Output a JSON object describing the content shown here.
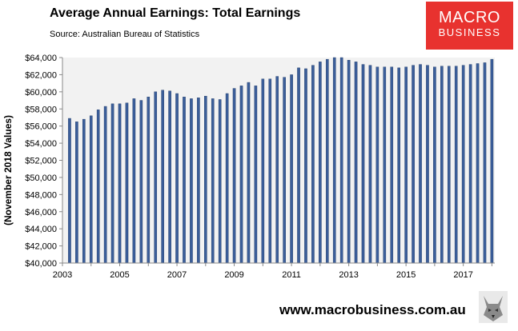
{
  "header": {
    "title": "Average Annual Earnings: Total Earnings",
    "subtitle": "Source: Australian Bureau of Statistics"
  },
  "logo": {
    "line1": "MACRO",
    "line2": "BUSINESS"
  },
  "footer": {
    "url": "www.macrobusiness.com.au"
  },
  "colors": {
    "bar": "#3b5e9a",
    "bar_edge": "#1f3a66",
    "plot_bg": "#f2f2f2",
    "logo_bg": "#e8322f"
  },
  "chart_data": {
    "type": "bar",
    "title": "Average Annual Earnings: Total Earnings",
    "ylabel": "(November 2018 Values)",
    "xlabel": "",
    "ylim": [
      40000,
      64000
    ],
    "y_ticks": [
      40000,
      42000,
      44000,
      46000,
      48000,
      50000,
      52000,
      54000,
      56000,
      58000,
      60000,
      62000,
      64000
    ],
    "y_tick_labels": [
      "$40,000",
      "$42,000",
      "$44,000",
      "$46,000",
      "$48,000",
      "$50,000",
      "$52,000",
      "$54,000",
      "$56,000",
      "$58,000",
      "$60,000",
      "$62,000",
      "$64,000"
    ],
    "x_tick_labels": [
      {
        "label": "2003",
        "x": 2003
      },
      {
        "label": "2005",
        "x": 2005
      },
      {
        "label": "2007",
        "x": 2007
      },
      {
        "label": "2009",
        "x": 2009
      },
      {
        "label": "2011",
        "x": 2011
      },
      {
        "label": "2013",
        "x": 2013
      },
      {
        "label": "2015",
        "x": 2015
      },
      {
        "label": "2017",
        "x": 2017
      }
    ],
    "x_range": [
      2003,
      2018.1
    ],
    "grid": false,
    "x": [
      2003.25,
      2003.5,
      2003.75,
      2004.0,
      2004.25,
      2004.5,
      2004.75,
      2005.0,
      2005.25,
      2005.5,
      2005.75,
      2006.0,
      2006.25,
      2006.5,
      2006.75,
      2007.0,
      2007.25,
      2007.5,
      2007.75,
      2008.0,
      2008.25,
      2008.5,
      2008.75,
      2009.0,
      2009.25,
      2009.5,
      2009.75,
      2010.0,
      2010.25,
      2010.5,
      2010.75,
      2011.0,
      2011.25,
      2011.5,
      2011.75,
      2012.0,
      2012.25,
      2012.5,
      2012.75,
      2013.0,
      2013.25,
      2013.5,
      2013.75,
      2014.0,
      2014.25,
      2014.5,
      2014.75,
      2015.0,
      2015.25,
      2015.5,
      2015.75,
      2016.0,
      2016.25,
      2016.5,
      2016.75,
      2017.0,
      2017.25,
      2017.5,
      2017.75,
      2018.0
    ],
    "values": [
      56900,
      56500,
      56800,
      57200,
      57900,
      58300,
      58600,
      58600,
      58700,
      59200,
      59000,
      59400,
      60000,
      60200,
      60100,
      59800,
      59400,
      59200,
      59300,
      59500,
      59200,
      59100,
      59800,
      60400,
      60700,
      61100,
      60700,
      61500,
      61500,
      61800,
      61700,
      62000,
      62800,
      62700,
      63100,
      63500,
      63800,
      64000,
      64000,
      63700,
      63500,
      63200,
      63100,
      62900,
      62900,
      62900,
      62800,
      62900,
      63100,
      63200,
      63100,
      62900,
      63000,
      63000,
      63000,
      63100,
      63200,
      63300,
      63400,
      63800
    ]
  }
}
